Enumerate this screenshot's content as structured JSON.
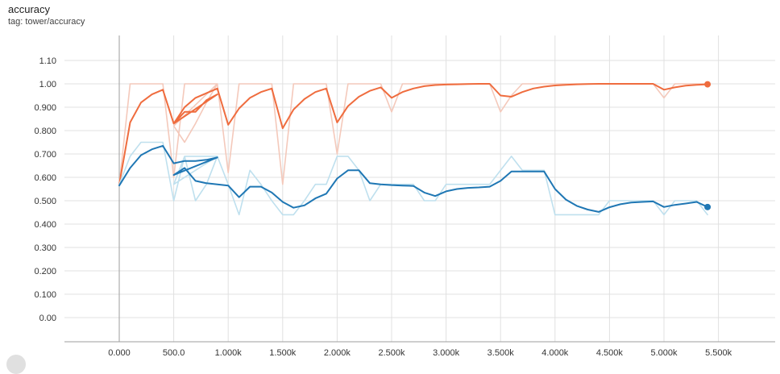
{
  "header": {
    "title": "accuracy",
    "subtitle": "tag: tower/accuracy"
  },
  "chart_data": {
    "type": "line",
    "title": "accuracy",
    "subtitle": "tag: tower/accuracy",
    "xlabel": "",
    "ylabel": "",
    "xlim": [
      -500,
      6100
    ],
    "ylim": [
      -0.1,
      1.2
    ],
    "grid": true,
    "legend": "none",
    "x_ticks": [
      {
        "value": 0,
        "label": "0.000"
      },
      {
        "value": 500,
        "label": "500.0"
      },
      {
        "value": 1000,
        "label": "1.000k"
      },
      {
        "value": 1500,
        "label": "1.500k"
      },
      {
        "value": 2000,
        "label": "2.000k"
      },
      {
        "value": 2500,
        "label": "2.500k"
      },
      {
        "value": 3000,
        "label": "3.000k"
      },
      {
        "value": 3500,
        "label": "3.500k"
      },
      {
        "value": 4000,
        "label": "4.000k"
      },
      {
        "value": 4500,
        "label": "4.500k"
      },
      {
        "value": 5000,
        "label": "5.000k"
      },
      {
        "value": 5500,
        "label": "5.500k"
      }
    ],
    "y_ticks": [
      {
        "value": 0.0,
        "label": "0.00"
      },
      {
        "value": 0.1,
        "label": "0.100"
      },
      {
        "value": 0.2,
        "label": "0.200"
      },
      {
        "value": 0.3,
        "label": "0.300"
      },
      {
        "value": 0.4,
        "label": "0.400"
      },
      {
        "value": 0.5,
        "label": "0.500"
      },
      {
        "value": 0.6,
        "label": "0.600"
      },
      {
        "value": 0.7,
        "label": "0.700"
      },
      {
        "value": 0.8,
        "label": "0.800"
      },
      {
        "value": 0.9,
        "label": "0.900"
      },
      {
        "value": 1.0,
        "label": "1.00"
      },
      {
        "value": 1.1,
        "label": "1.10"
      }
    ],
    "series": [
      {
        "color": "#f4c9bb",
        "x": [
          0,
          100,
          200,
          300,
          400,
          500,
          600,
          700,
          800,
          900,
          500,
          600,
          700,
          800,
          900,
          1000,
          1100,
          1200,
          1300,
          1400,
          1500,
          1600,
          1700,
          1800,
          1900,
          2000,
          2100,
          2200,
          2300,
          2400,
          2500,
          2600,
          2700,
          2800,
          2900,
          3000,
          3100,
          3200,
          3300,
          3400,
          3500,
          3600,
          3700,
          3800,
          3900,
          4000,
          4100,
          4200,
          4300,
          4400,
          4500,
          4600,
          4700,
          4800,
          4900,
          5000,
          5100,
          5200,
          5300,
          5400
        ],
        "y": [
          0.57,
          1.0,
          1.0,
          1.0,
          1.0,
          0.6,
          1.0,
          1.0,
          1.0,
          1.0,
          0.82,
          0.75,
          0.83,
          0.92,
          1.0,
          0.62,
          1.0,
          1.0,
          1.0,
          1.0,
          0.57,
          1.0,
          1.0,
          1.0,
          1.0,
          0.7,
          1.0,
          1.0,
          1.0,
          1.0,
          0.88,
          1.0,
          1.0,
          1.0,
          1.0,
          1.0,
          1.0,
          1.0,
          1.0,
          1.0,
          0.88,
          0.95,
          1.0,
          1.0,
          1.0,
          1.0,
          1.0,
          1.0,
          1.0,
          1.0,
          1.0,
          1.0,
          1.0,
          1.0,
          1.0,
          0.94,
          1.0,
          1.0,
          1.0,
          1.0
        ]
      },
      {
        "color": "#ef6c3e",
        "x": [
          0,
          100,
          200,
          300,
          400,
          500,
          600,
          700,
          800,
          900,
          500,
          600,
          700,
          800,
          900,
          1000,
          1100,
          1200,
          1300,
          1400,
          1500,
          1600,
          1700,
          1800,
          1900,
          2000,
          2100,
          2200,
          2300,
          2400,
          2500,
          2600,
          2700,
          2800,
          2900,
          3000,
          3100,
          3200,
          3300,
          3400,
          3500,
          3600,
          3700,
          3800,
          3900,
          4000,
          4100,
          4200,
          4300,
          4400,
          4500,
          4600,
          4700,
          4800,
          4900,
          5000,
          5100,
          5200,
          5300,
          5400
        ],
        "y": [
          0.57,
          0.835,
          0.92,
          0.955,
          0.975,
          0.83,
          0.88,
          0.88,
          0.93,
          0.955,
          0.83,
          0.9,
          0.94,
          0.96,
          0.98,
          0.825,
          0.895,
          0.94,
          0.965,
          0.98,
          0.81,
          0.89,
          0.935,
          0.965,
          0.98,
          0.835,
          0.905,
          0.945,
          0.97,
          0.985,
          0.94,
          0.965,
          0.98,
          0.99,
          0.995,
          0.997,
          0.998,
          0.999,
          1.0,
          1.0,
          0.95,
          0.945,
          0.965,
          0.98,
          0.988,
          0.993,
          0.996,
          0.998,
          0.999,
          1.0,
          1.0,
          1.0,
          1.0,
          1.0,
          1.0,
          0.975,
          0.985,
          0.992,
          0.996,
          0.998
        ],
        "end_marker": true
      },
      {
        "color": "#bfe0ee",
        "x": [
          0,
          100,
          200,
          300,
          400,
          500,
          600,
          700,
          800,
          900,
          500,
          600,
          700,
          800,
          900,
          1000,
          1100,
          1200,
          1300,
          1400,
          1500,
          1600,
          1700,
          1800,
          1900,
          2000,
          2100,
          2200,
          2300,
          2400,
          2500,
          2600,
          2700,
          2800,
          2900,
          3000,
          3100,
          3200,
          3300,
          3400,
          3500,
          3600,
          3700,
          3800,
          3900,
          4000,
          4100,
          4200,
          4300,
          4400,
          4500,
          4600,
          4700,
          4800,
          4900,
          5000,
          5100,
          5200,
          5300,
          5400
        ],
        "y": [
          0.57,
          0.69,
          0.75,
          0.75,
          0.75,
          0.5,
          0.69,
          0.5,
          0.57,
          0.69,
          0.57,
          0.69,
          0.69,
          0.69,
          0.69,
          0.57,
          0.44,
          0.63,
          0.57,
          0.5,
          0.44,
          0.44,
          0.5,
          0.57,
          0.57,
          0.69,
          0.69,
          0.63,
          0.5,
          0.57,
          0.57,
          0.57,
          0.57,
          0.5,
          0.5,
          0.57,
          0.57,
          0.57,
          0.57,
          0.57,
          0.63,
          0.69,
          0.63,
          0.63,
          0.63,
          0.44,
          0.44,
          0.44,
          0.44,
          0.44,
          0.5,
          0.5,
          0.5,
          0.5,
          0.5,
          0.44,
          0.5,
          0.5,
          0.5,
          0.44
        ]
      },
      {
        "color": "#1f77b4",
        "x": [
          0,
          100,
          200,
          300,
          400,
          500,
          600,
          700,
          800,
          900,
          500,
          600,
          700,
          800,
          900,
          1000,
          1100,
          1200,
          1300,
          1400,
          1500,
          1600,
          1700,
          1800,
          1900,
          2000,
          2100,
          2200,
          2300,
          2400,
          2500,
          2600,
          2700,
          2800,
          2900,
          3000,
          3100,
          3200,
          3300,
          3400,
          3500,
          3600,
          3700,
          3800,
          3900,
          4000,
          4100,
          4200,
          4300,
          4400,
          4500,
          4600,
          4700,
          4800,
          4900,
          5000,
          5100,
          5200,
          5300,
          5400
        ],
        "y": [
          0.565,
          0.64,
          0.695,
          0.72,
          0.735,
          0.66,
          0.67,
          0.67,
          0.675,
          0.685,
          0.61,
          0.64,
          0.585,
          0.575,
          0.57,
          0.565,
          0.515,
          0.56,
          0.56,
          0.535,
          0.495,
          0.47,
          0.48,
          0.51,
          0.53,
          0.595,
          0.63,
          0.63,
          0.575,
          0.57,
          0.567,
          0.565,
          0.563,
          0.535,
          0.52,
          0.54,
          0.55,
          0.555,
          0.557,
          0.56,
          0.585,
          0.625,
          0.625,
          0.625,
          0.625,
          0.55,
          0.505,
          0.478,
          0.462,
          0.452,
          0.472,
          0.485,
          0.492,
          0.495,
          0.497,
          0.473,
          0.482,
          0.488,
          0.495,
          0.473
        ],
        "end_marker": true
      }
    ]
  }
}
